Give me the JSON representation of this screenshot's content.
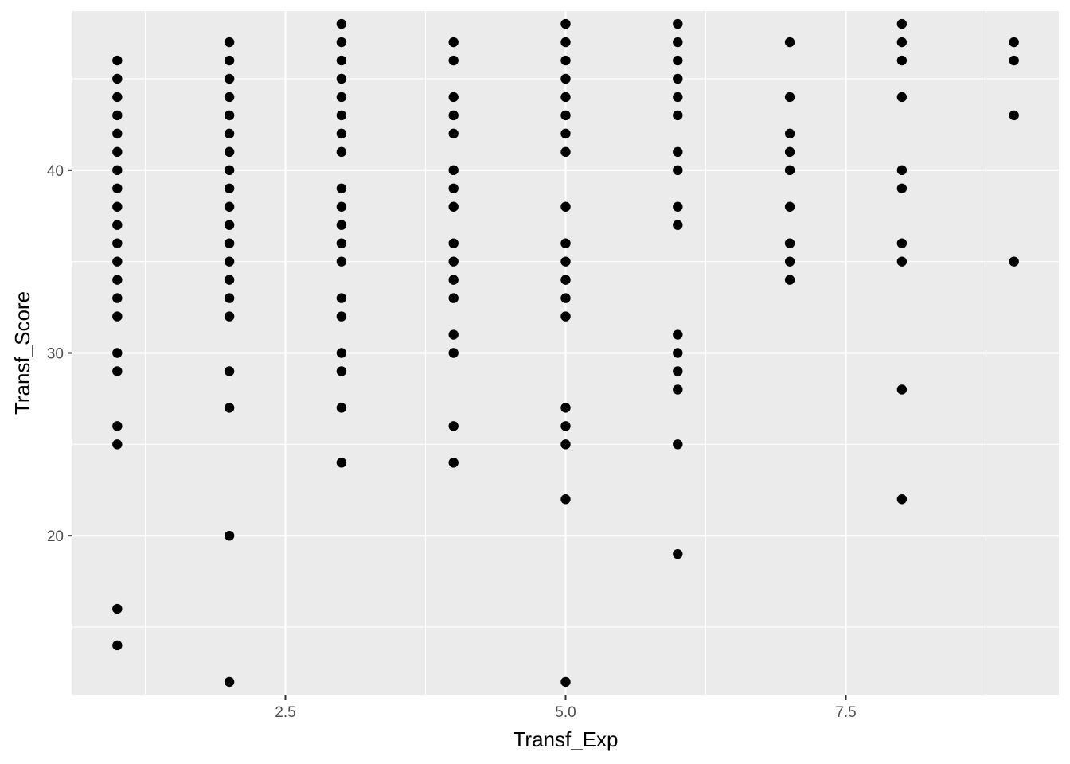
{
  "chart_data": {
    "type": "scatter",
    "title": "",
    "xlabel": "Transf_Exp",
    "ylabel": "Transf_Score",
    "xlim": [
      0.6,
      9.4
    ],
    "ylim": [
      11.3,
      48.7
    ],
    "x_ticks": [
      2.5,
      5.0,
      7.5
    ],
    "x_tick_labels": [
      "2.5",
      "5.0",
      "7.5"
    ],
    "x_minor_ticks": [
      1.25,
      3.75,
      6.25,
      8.75
    ],
    "y_ticks": [
      20,
      30,
      40
    ],
    "y_tick_labels": [
      "20",
      "30",
      "40"
    ],
    "y_minor_ticks": [
      15,
      25,
      35,
      45
    ],
    "grid": true,
    "colors": {
      "panel": "#EBEBEB",
      "grid": "#FFFFFF",
      "point": "#000000"
    },
    "points": [
      {
        "x": 1,
        "y": [
          46,
          45,
          44,
          43,
          42,
          41,
          40,
          39,
          38,
          37,
          36,
          35,
          34,
          33,
          32,
          30,
          29,
          26,
          25,
          16,
          14
        ]
      },
      {
        "x": 2,
        "y": [
          47,
          46,
          45,
          44,
          43,
          42,
          41,
          40,
          39,
          38,
          37,
          36,
          35,
          34,
          33,
          32,
          29,
          27,
          20,
          12
        ]
      },
      {
        "x": 3,
        "y": [
          48,
          47,
          46,
          45,
          44,
          43,
          42,
          41,
          39,
          38,
          37,
          36,
          35,
          33,
          32,
          30,
          29,
          27,
          24
        ]
      },
      {
        "x": 4,
        "y": [
          47,
          46,
          44,
          43,
          42,
          40,
          39,
          38,
          36,
          35,
          34,
          33,
          31,
          30,
          26,
          24
        ]
      },
      {
        "x": 5,
        "y": [
          48,
          47,
          46,
          45,
          44,
          43,
          42,
          41,
          38,
          36,
          35,
          34,
          33,
          32,
          27,
          26,
          25,
          22,
          12
        ]
      },
      {
        "x": 6,
        "y": [
          48,
          47,
          46,
          45,
          44,
          43,
          41,
          40,
          38,
          37,
          31,
          30,
          29,
          28,
          25,
          19
        ]
      },
      {
        "x": 7,
        "y": [
          47,
          44,
          42,
          41,
          40,
          38,
          36,
          35,
          34
        ]
      },
      {
        "x": 8,
        "y": [
          48,
          47,
          46,
          44,
          40,
          39,
          36,
          35,
          28,
          22
        ]
      },
      {
        "x": 9,
        "y": [
          47,
          46,
          43,
          35
        ]
      }
    ]
  }
}
